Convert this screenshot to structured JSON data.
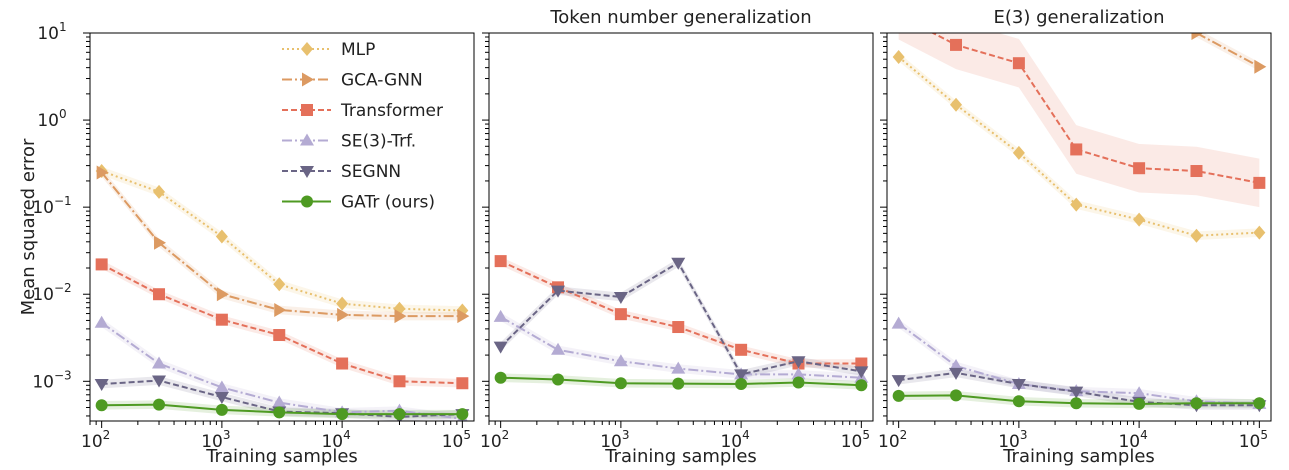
{
  "chart_data": [
    {
      "type": "line",
      "title": "",
      "xlabel": "Training samples",
      "ylabel": "Mean squared error",
      "xscale": "log",
      "yscale": "log",
      "xlim": [
        80,
        125000
      ],
      "ylim": [
        0.00035,
        10
      ],
      "x": [
        100,
        300,
        1000,
        3000,
        10000,
        30000,
        100000
      ],
      "legend": "top-right",
      "series": [
        {
          "name": "MLP",
          "key": "mlp",
          "values": [
            0.26,
            0.15,
            0.046,
            0.013,
            0.0078,
            0.0068,
            0.0065
          ]
        },
        {
          "name": "GCA-GNN",
          "key": "gca",
          "values": [
            0.25,
            0.039,
            0.01,
            0.0066,
            0.0058,
            0.0056,
            0.0056
          ]
        },
        {
          "name": "Transformer",
          "key": "trf",
          "values": [
            0.022,
            0.01,
            0.0051,
            0.0034,
            0.0016,
            0.001,
            0.00095
          ]
        },
        {
          "name": "SE(3)-Trf.",
          "key": "se3",
          "values": [
            0.0047,
            0.0016,
            0.00085,
            0.00057,
            0.00044,
            0.00046,
            0.00037
          ]
        },
        {
          "name": "SEGNN",
          "key": "segnn",
          "values": [
            0.00093,
            0.00102,
            0.00066,
            0.00045,
            0.00043,
            0.00039,
            0.00042
          ]
        },
        {
          "name": "GATr (ours)",
          "key": "gatr",
          "values": [
            0.00053,
            0.00054,
            0.00047,
            0.00044,
            0.00042,
            0.00042,
            0.00042
          ]
        }
      ]
    },
    {
      "type": "line",
      "title": "Token number generalization",
      "xlabel": "Training samples",
      "ylabel": "",
      "xscale": "log",
      "yscale": "log",
      "xlim": [
        80,
        125000
      ],
      "ylim": [
        0.00035,
        10
      ],
      "x": [
        100,
        300,
        1000,
        3000,
        10000,
        30000,
        100000
      ],
      "series": [
        {
          "key": "trf",
          "values": [
            0.024,
            0.012,
            0.0059,
            0.0042,
            0.0023,
            0.0016,
            0.0016
          ]
        },
        {
          "key": "se3",
          "values": [
            0.0055,
            0.0023,
            0.0017,
            0.0014,
            0.0012,
            0.0012,
            0.0011
          ]
        },
        {
          "key": "segnn",
          "values": [
            0.0025,
            0.011,
            0.0093,
            0.023,
            0.0012,
            0.0017,
            0.0013
          ]
        },
        {
          "key": "gatr",
          "values": [
            0.0011,
            0.00105,
            0.00095,
            0.00094,
            0.00093,
            0.00097,
            0.0009
          ]
        }
      ]
    },
    {
      "type": "line",
      "title": "E(3) generalization",
      "xlabel": "Training samples",
      "ylabel": "",
      "xscale": "log",
      "yscale": "log",
      "xlim": [
        80,
        125000
      ],
      "ylim": [
        0.00035,
        10
      ],
      "x": [
        100,
        300,
        1000,
        3000,
        10000,
        30000,
        100000
      ],
      "series": [
        {
          "key": "mlp",
          "values": [
            5.3,
            1.5,
            0.42,
            0.107,
            0.072,
            0.047,
            0.051
          ]
        },
        {
          "key": "gca",
          "values": [
            null,
            null,
            null,
            null,
            null,
            10.0,
            4.1
          ]
        },
        {
          "key": "trf",
          "values": [
            16,
            7.3,
            4.5,
            0.46,
            0.28,
            0.26,
            0.19
          ]
        },
        {
          "key": "se3",
          "values": [
            0.0046,
            0.0015,
            0.00093,
            0.00077,
            0.00073,
            0.00059,
            0.00055
          ]
        },
        {
          "key": "segnn",
          "values": [
            0.00103,
            0.00125,
            0.00093,
            0.00076,
            0.00058,
            0.00053,
            0.00053
          ]
        },
        {
          "key": "gatr",
          "values": [
            0.00068,
            0.00069,
            0.00059,
            0.00056,
            0.00055,
            0.00056,
            0.00056
          ]
        }
      ]
    }
  ],
  "axis_ticks": {
    "y": [
      "10",
      "10",
      "10",
      "10",
      "10"
    ],
    "y_exp": [
      "1",
      "0",
      "−1",
      "−2",
      "−3"
    ],
    "x": [
      "10",
      "10",
      "10",
      "10"
    ],
    "x_exp": [
      "2",
      "3",
      "4",
      "5"
    ]
  },
  "styles": {
    "mlp": {
      "color": "#e8c06e",
      "dash": "2,3",
      "marker": "diamond"
    },
    "gca": {
      "color": "#dc9a62",
      "dash": "10,3,2,3",
      "marker": "triangle-right"
    },
    "trf": {
      "color": "#e4705a",
      "dash": "6,3",
      "marker": "square"
    },
    "se3": {
      "color": "#b4abd3",
      "dash": "10,3,2,3",
      "marker": "triangle-up"
    },
    "segnn": {
      "color": "#6a6585",
      "dash": "6,3",
      "marker": "triangle-down"
    },
    "gatr": {
      "color": "#4e9a22",
      "dash": "",
      "marker": "circle"
    }
  }
}
